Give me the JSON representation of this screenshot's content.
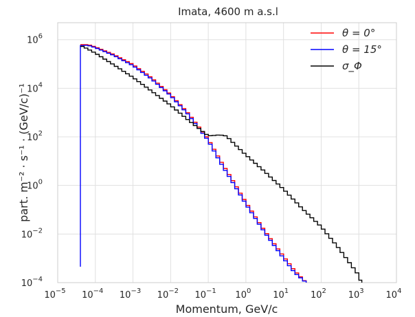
{
  "chart_data": {
    "type": "line",
    "title": "Imata, 4600 m a.s.l",
    "xlabel": "Momentum, GeV/c",
    "ylabel": "part. m⁻² · s⁻¹ · (GeV/c)⁻¹",
    "xscale": "log",
    "yscale": "log",
    "xlim": [
      1e-05,
      10000
    ],
    "ylim": [
      0.0001,
      5000000
    ],
    "grid": true,
    "legend_position": "top-right",
    "x_ticks": [
      {
        "value": 1e-05,
        "base": "10",
        "exp": "−5"
      },
      {
        "value": 0.0001,
        "base": "10",
        "exp": "−4"
      },
      {
        "value": 0.001,
        "base": "10",
        "exp": "−3"
      },
      {
        "value": 0.01,
        "base": "10",
        "exp": "−2"
      },
      {
        "value": 0.1,
        "base": "10",
        "exp": "−1"
      },
      {
        "value": 1,
        "base": "10",
        "exp": "0"
      },
      {
        "value": 10,
        "base": "10",
        "exp": "1"
      },
      {
        "value": 100,
        "base": "10",
        "exp": "2"
      },
      {
        "value": 1000,
        "base": "10",
        "exp": "3"
      },
      {
        "value": 10000,
        "base": "10",
        "exp": "4"
      }
    ],
    "y_ticks": [
      {
        "value": 0.0001,
        "base": "10",
        "exp": "−4"
      },
      {
        "value": 0.01,
        "base": "10",
        "exp": "−2"
      },
      {
        "value": 1,
        "base": "10",
        "exp": "0"
      },
      {
        "value": 100,
        "base": "10",
        "exp": "2"
      },
      {
        "value": 10000,
        "base": "10",
        "exp": "4"
      },
      {
        "value": 1000000,
        "base": "10",
        "exp": "6"
      }
    ],
    "series": [
      {
        "name": "θ = 0°",
        "color": "#ff0000",
        "points": [
          [
            4e-05,
            600000
          ],
          [
            5e-05,
            640000
          ],
          [
            7e-05,
            600000
          ],
          [
            0.0001,
            500000
          ],
          [
            0.0003,
            250000
          ],
          [
            0.001,
            95000
          ],
          [
            0.003,
            28000
          ],
          [
            0.01,
            5500
          ],
          [
            0.03,
            900
          ],
          [
            0.1,
            80
          ],
          [
            0.2,
            12
          ],
          [
            0.5,
            1.2
          ],
          [
            1,
            0.2
          ],
          [
            3,
            0.015
          ],
          [
            10,
            0.0012
          ],
          [
            20,
            0.0003
          ],
          [
            40,
            0.0001
          ]
        ]
      },
      {
        "name": "θ = 15°",
        "color": "#0000ff",
        "points": [
          [
            4e-05,
            0.0
          ],
          [
            4e-05,
            550000
          ],
          [
            5e-05,
            600000
          ],
          [
            7e-05,
            560000
          ],
          [
            0.0001,
            470000
          ],
          [
            0.0003,
            230000
          ],
          [
            0.001,
            85000
          ],
          [
            0.003,
            25000
          ],
          [
            0.01,
            5000
          ],
          [
            0.03,
            800
          ],
          [
            0.1,
            70
          ],
          [
            0.2,
            10
          ],
          [
            0.5,
            1.0
          ],
          [
            1,
            0.17
          ],
          [
            3,
            0.013
          ],
          [
            10,
            0.001
          ],
          [
            20,
            0.00025
          ],
          [
            40,
            0.0001
          ]
        ]
      },
      {
        "name": "σ_Φ",
        "color": "#000000",
        "points": [
          [
            4e-05,
            550000
          ],
          [
            5e-05,
            500000
          ],
          [
            7e-05,
            380000
          ],
          [
            0.0001,
            280000
          ],
          [
            0.0003,
            95000
          ],
          [
            0.001,
            28000
          ],
          [
            0.003,
            8000
          ],
          [
            0.01,
            2000
          ],
          [
            0.03,
            480
          ],
          [
            0.1,
            110
          ],
          [
            0.2,
            120
          ],
          [
            0.3,
            110
          ],
          [
            0.5,
            50
          ],
          [
            1,
            18
          ],
          [
            3,
            4
          ],
          [
            10,
            0.7
          ],
          [
            30,
            0.12
          ],
          [
            100,
            0.02
          ],
          [
            300,
            0.0025
          ],
          [
            1000,
            0.0002
          ],
          [
            1200,
            0.0001
          ]
        ]
      }
    ]
  }
}
